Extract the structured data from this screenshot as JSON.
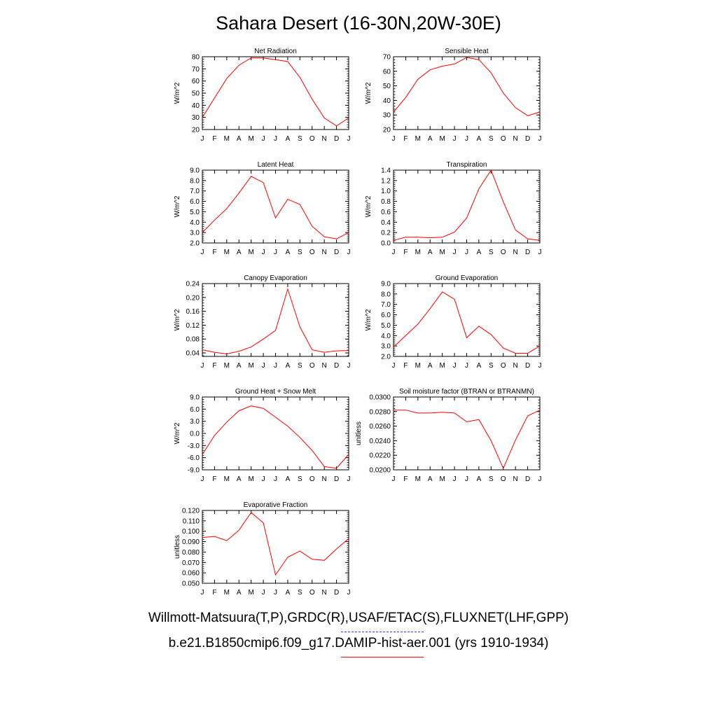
{
  "page": {
    "title": "Sahara Desert (16-30N,20W-30E)",
    "footer_obs": "Willmott-Matsuura(T,P),GRDC(R),USAF/ETAC(S),FLUXNET(LHF,GPP)",
    "footer_model": "b.e21.B1850cmip6.f09_g17.DAMIP-hist-aer.001 (yrs 1910-1934)",
    "colors": {
      "model": "#ff0000",
      "obs": "#3333ff"
    }
  },
  "chart_data": [
    {
      "type": "line",
      "title": "Net Radiation",
      "ylabel": "W/m^2",
      "categories": [
        "J",
        "F",
        "M",
        "A",
        "M",
        "J",
        "J",
        "A",
        "S",
        "O",
        "N",
        "D",
        "J"
      ],
      "ylim": [
        20,
        80
      ],
      "yticks": [
        "20",
        "30",
        "40",
        "50",
        "60",
        "70",
        "80"
      ],
      "series": [
        {
          "values": [
            30,
            46,
            62,
            73,
            79,
            79,
            77.5,
            76,
            63,
            45,
            29.5,
            23,
            29.5
          ]
        }
      ]
    },
    {
      "type": "line",
      "title": "Sensible Heat",
      "ylabel": "W/m^2",
      "categories": [
        "J",
        "F",
        "M",
        "A",
        "M",
        "J",
        "J",
        "A",
        "S",
        "O",
        "N",
        "D",
        "J"
      ],
      "ylim": [
        20,
        70
      ],
      "yticks": [
        "20",
        "30",
        "40",
        "50",
        "60",
        "70"
      ],
      "series": [
        {
          "values": [
            32,
            42,
            54.5,
            61,
            63.5,
            65,
            69.5,
            68,
            59,
            45,
            35,
            29.5,
            32
          ]
        }
      ]
    },
    {
      "type": "line",
      "title": "Latent Heat",
      "ylabel": "W/m^2",
      "categories": [
        "J",
        "F",
        "M",
        "A",
        "M",
        "J",
        "J",
        "A",
        "S",
        "O",
        "N",
        "D",
        "J"
      ],
      "ylim": [
        2.0,
        9.0
      ],
      "yticks": [
        "2.0",
        "3.0",
        "4.0",
        "5.0",
        "6.0",
        "7.0",
        "8.0",
        "9.0"
      ],
      "series": [
        {
          "values": [
            3.0,
            4.2,
            5.3,
            6.8,
            8.4,
            7.8,
            4.4,
            6.2,
            5.7,
            3.6,
            2.6,
            2.4,
            3.0
          ]
        }
      ]
    },
    {
      "type": "line",
      "title": "Transpiration",
      "ylabel": "W/m^2",
      "categories": [
        "J",
        "F",
        "M",
        "A",
        "M",
        "J",
        "J",
        "A",
        "S",
        "O",
        "N",
        "D",
        "J"
      ],
      "ylim": [
        0.0,
        1.4
      ],
      "yticks": [
        "0.0",
        "0.2",
        "0.4",
        "0.6",
        "0.8",
        "1.0",
        "1.2",
        "1.4"
      ],
      "series": [
        {
          "values": [
            0.05,
            0.11,
            0.11,
            0.1,
            0.11,
            0.21,
            0.48,
            1.04,
            1.4,
            0.79,
            0.25,
            0.08,
            0.05
          ]
        }
      ]
    },
    {
      "type": "line",
      "title": "Canopy Evaporation",
      "ylabel": "W/m^2",
      "categories": [
        "J",
        "F",
        "M",
        "A",
        "M",
        "J",
        "J",
        "A",
        "S",
        "O",
        "N",
        "D",
        "J"
      ],
      "ylim": [
        0.03,
        0.24
      ],
      "yticks": [
        "0.04",
        "0.08",
        "0.12",
        "0.16",
        "0.20",
        "0.24"
      ],
      "series": [
        {
          "values": [
            0.049,
            0.042,
            0.037,
            0.045,
            0.057,
            0.08,
            0.105,
            0.224,
            0.115,
            0.049,
            0.042,
            0.046,
            0.047
          ]
        }
      ]
    },
    {
      "type": "line",
      "title": "Ground Evaporation",
      "ylabel": "W/m^2",
      "categories": [
        "J",
        "F",
        "M",
        "A",
        "M",
        "J",
        "J",
        "A",
        "S",
        "O",
        "N",
        "D",
        "J"
      ],
      "ylim": [
        2.0,
        9.0
      ],
      "yticks": [
        "2.0",
        "3.0",
        "4.0",
        "5.0",
        "6.0",
        "7.0",
        "8.0",
        "9.0"
      ],
      "series": [
        {
          "values": [
            2.9,
            4.0,
            5.1,
            6.6,
            8.2,
            7.5,
            3.8,
            4.9,
            4.1,
            2.8,
            2.3,
            2.3,
            3.0
          ]
        }
      ]
    },
    {
      "type": "line",
      "title": "Ground Heat + Snow Melt",
      "ylabel": "W/m^2",
      "categories": [
        "J",
        "F",
        "M",
        "A",
        "M",
        "J",
        "J",
        "A",
        "S",
        "O",
        "N",
        "D",
        "J"
      ],
      "ylim": [
        -9.0,
        9.0
      ],
      "yticks": [
        "-9.0",
        "-6.0",
        "-3.0",
        "0.0",
        "3.0",
        "6.0",
        "9.0"
      ],
      "series": [
        {
          "values": [
            -5.2,
            -0.5,
            2.8,
            5.6,
            6.8,
            6.2,
            4.0,
            1.8,
            -1.0,
            -4.2,
            -8.2,
            -8.6,
            -5.2
          ]
        }
      ]
    },
    {
      "type": "line",
      "title": "Soil moisture factor (BTRAN or BTRANMN)",
      "ylabel": "unitless",
      "categories": [
        "J",
        "F",
        "M",
        "A",
        "M",
        "J",
        "J",
        "A",
        "S",
        "O",
        "N",
        "D",
        "J"
      ],
      "ylim": [
        0.02,
        0.03
      ],
      "yticks": [
        "0.0200",
        "0.0220",
        "0.0240",
        "0.0260",
        "0.0280",
        "0.0300"
      ],
      "series": [
        {
          "values": [
            0.0282,
            0.0282,
            0.0278,
            0.0278,
            0.0279,
            0.0278,
            0.0266,
            0.0269,
            0.024,
            0.0202,
            0.0241,
            0.0274,
            0.0282
          ]
        }
      ]
    },
    {
      "type": "line",
      "title": "Evaporative Fraction",
      "ylabel": "unitless",
      "categories": [
        "J",
        "F",
        "M",
        "A",
        "M",
        "J",
        "J",
        "A",
        "S",
        "O",
        "N",
        "D",
        "J"
      ],
      "ylim": [
        0.05,
        0.12
      ],
      "yticks": [
        "0.050",
        "0.060",
        "0.070",
        "0.080",
        "0.090",
        "0.100",
        "0.110",
        "0.120"
      ],
      "series": [
        {
          "values": [
            0.094,
            0.095,
            0.091,
            0.101,
            0.118,
            0.108,
            0.058,
            0.075,
            0.081,
            0.073,
            0.072,
            0.083,
            0.093
          ]
        }
      ]
    }
  ]
}
